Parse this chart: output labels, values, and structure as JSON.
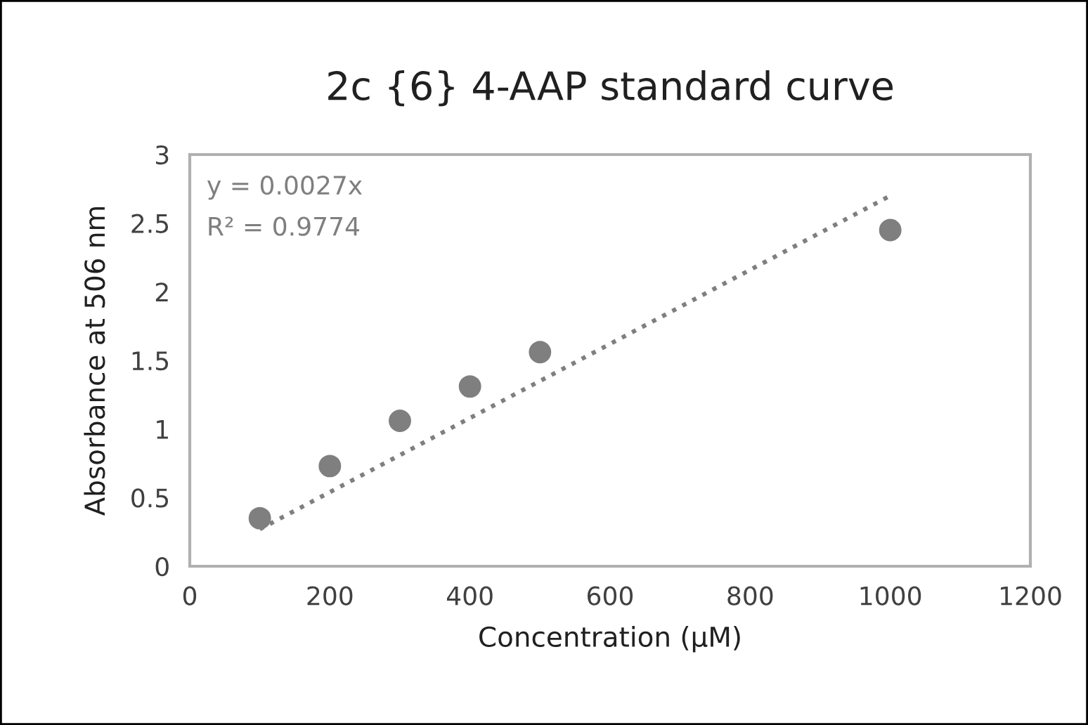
{
  "chart_data": {
    "type": "scatter",
    "title": "2c {6} 4-AAP standard curve",
    "xlabel": "Concentration (µM)",
    "ylabel": "Absorbance at 506 nm",
    "x": [
      100,
      200,
      300,
      400,
      500,
      1000
    ],
    "series": [
      {
        "color": "#7f7f7f",
        "marker": "circle",
        "values": [
          0.35,
          0.73,
          1.06,
          1.31,
          1.56,
          2.45
        ]
      },
      {
        "type": "line",
        "color": "#7f7f7f",
        "line_style": "dotted",
        "marker": "none",
        "x": [
          100,
          1000
        ],
        "values": [
          0.27,
          2.7
        ]
      }
    ],
    "annotations": [
      "y = 0.0027x",
      "R² = 0.9774"
    ],
    "xlim": [
      0,
      1200
    ],
    "xticks": [
      0,
      200,
      400,
      600,
      800,
      1000,
      1200
    ],
    "ylim": [
      0,
      3
    ],
    "yticks": [
      0,
      0.5,
      1,
      1.5,
      2,
      2.5,
      3
    ],
    "grid": false,
    "legend": false
  }
}
